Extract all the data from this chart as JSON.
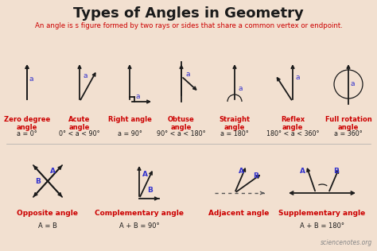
{
  "title": "Types of Angles in Geometry",
  "subtitle": "An angle is s figure formed by two rays or sides that share a common vertex or endpoint.",
  "bg_color": "#f2e0d0",
  "title_color": "#1a1a1a",
  "subtitle_color": "#cc0000",
  "angle_label_color": "#3333cc",
  "formula_color": "#1a1a1a",
  "arrow_color": "#1a1a1a",
  "section_title_color": "#cc0000",
  "watermark": "sciencenotes.org"
}
